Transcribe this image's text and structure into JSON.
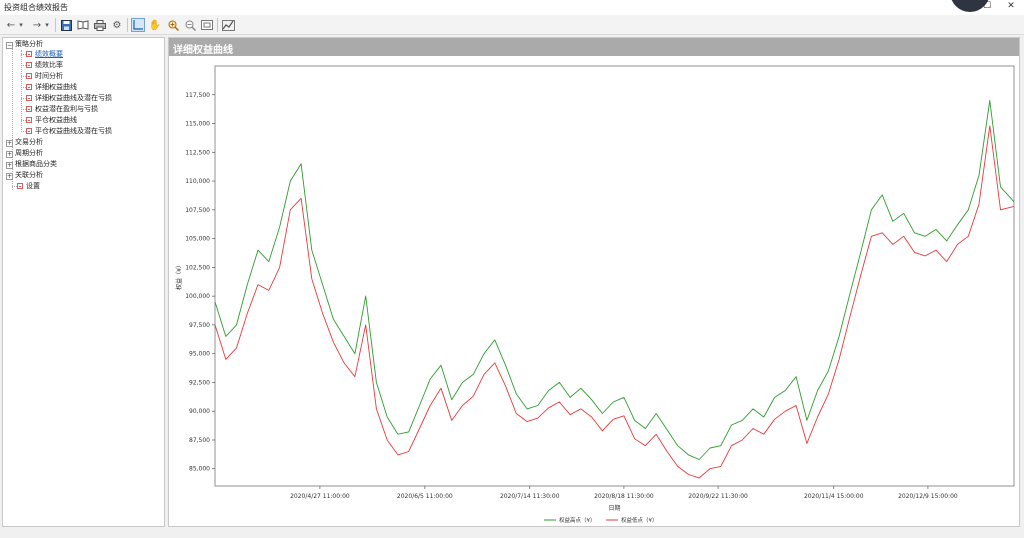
{
  "window": {
    "title": "投资组合绩效报告"
  },
  "toolbar": {
    "items": [
      "back-icon",
      "dropdown-icon",
      "forward-icon",
      "dropdown-icon",
      "save-icon",
      "book-icon",
      "print-icon",
      "gear-icon",
      "crosshair-icon",
      "hand-icon",
      "zoom-in-icon",
      "zoom-out-icon",
      "fit-icon",
      "export-icon"
    ]
  },
  "tree": {
    "strategy": "策略分析",
    "performance_summary": "绩效概要",
    "performance_ratio": "绩效比率",
    "time_analysis": "时间分析",
    "detail_equity_curve": "详细权益曲线",
    "detail_equity_dd": "详细权益曲线及潜在亏损",
    "equity_potential": "权益潜在盈利与亏损",
    "close_equity_curve": "平仓权益曲线",
    "close_equity_dd": "平仓权益曲线及潜在亏损",
    "trade": "交易分析",
    "period": "周期分析",
    "by_commodity": "根据商品分类",
    "correlation": "关联分析",
    "settings": "设置"
  },
  "panel": {
    "title": "详细权益曲线"
  },
  "chart_data": {
    "type": "line",
    "xlabel": "日期",
    "ylabel": "权益（¥）",
    "ylim": [
      83500,
      120000
    ],
    "y_ticks": [
      85000,
      87500,
      90000,
      92500,
      95000,
      97500,
      100000,
      102500,
      105000,
      107500,
      110000,
      112500,
      115000,
      117500
    ],
    "y_tick_labels": [
      "85,000",
      "87,500",
      "90,000",
      "92,500",
      "95,000",
      "97,500",
      "100,000",
      "102,500",
      "105,000",
      "107,500",
      "110,000",
      "112,500",
      "115,000",
      "117,500"
    ],
    "x_tick_labels": [
      "2020/4/27 11:00:00",
      "2020/6/5 11:00:00",
      "2020/7/14 11:30:00",
      "2020/8/18 11:30:00",
      "2020/9/22 11:30:00",
      "2020/11/4 15:00:00",
      "2020/12/9 15:00:00"
    ],
    "x_range": [
      "2020/3/19",
      "2021/1/10"
    ],
    "x_tick_dates": [
      "2020/4/27",
      "2020/6/5",
      "2020/7/14",
      "2020/8/18",
      "2020/9/22",
      "2020/11/4",
      "2020/12/9"
    ],
    "grid": true,
    "legend_position": "bottom-center",
    "series": [
      {
        "name": "权益高点（¥）",
        "color": "#2e9c2e",
        "x": [
          "2020/3/19",
          "2020/3/23",
          "2020/3/27",
          "2020/3/31",
          "2020/4/4",
          "2020/4/8",
          "2020/4/12",
          "2020/4/16",
          "2020/4/20",
          "2020/4/24",
          "2020/4/28",
          "2020/5/2",
          "2020/5/6",
          "2020/5/10",
          "2020/5/14",
          "2020/5/18",
          "2020/5/22",
          "2020/5/26",
          "2020/5/30",
          "2020/6/3",
          "2020/6/7",
          "2020/6/11",
          "2020/6/15",
          "2020/6/19",
          "2020/6/23",
          "2020/6/27",
          "2020/7/1",
          "2020/7/5",
          "2020/7/9",
          "2020/7/13",
          "2020/7/17",
          "2020/7/21",
          "2020/7/25",
          "2020/7/29",
          "2020/8/2",
          "2020/8/6",
          "2020/8/10",
          "2020/8/14",
          "2020/8/18",
          "2020/8/22",
          "2020/8/26",
          "2020/8/30",
          "2020/9/3",
          "2020/9/7",
          "2020/9/11",
          "2020/9/15",
          "2020/9/19",
          "2020/9/23",
          "2020/9/27",
          "2020/10/1",
          "2020/10/5",
          "2020/10/9",
          "2020/10/13",
          "2020/10/17",
          "2020/10/21",
          "2020/10/25",
          "2020/10/29",
          "2020/11/2",
          "2020/11/6",
          "2020/11/10",
          "2020/11/14",
          "2020/11/18",
          "2020/11/22",
          "2020/11/26",
          "2020/11/30",
          "2020/12/4",
          "2020/12/8",
          "2020/12/12",
          "2020/12/16",
          "2020/12/20",
          "2020/12/24",
          "2020/12/28",
          "2021/1/1",
          "2021/1/5",
          "2021/1/10"
        ],
        "values": [
          99500,
          96500,
          97500,
          101000,
          104000,
          103000,
          106000,
          110000,
          111500,
          104000,
          101000,
          98000,
          96500,
          95000,
          100000,
          92500,
          89500,
          88000,
          88200,
          90500,
          92800,
          94000,
          91000,
          92500,
          93200,
          95000,
          96200,
          94000,
          91500,
          90200,
          90500,
          91800,
          92500,
          91200,
          92000,
          91000,
          89800,
          90800,
          91200,
          89200,
          88500,
          89800,
          88400,
          87000,
          86200,
          85800,
          86800,
          87000,
          88800,
          89200,
          90200,
          89500,
          91200,
          91800,
          93000,
          89200,
          91800,
          93500,
          96500,
          100200,
          103800,
          107500,
          108800,
          106500,
          107200,
          105500,
          105200,
          105800,
          104800,
          106200,
          107500,
          110500,
          117000,
          109500,
          108200
        ]
      },
      {
        "name": "权益低点（¥）",
        "color": "#e83a3a",
        "x": [
          "2020/3/19",
          "2020/3/23",
          "2020/3/27",
          "2020/3/31",
          "2020/4/4",
          "2020/4/8",
          "2020/4/12",
          "2020/4/16",
          "2020/4/20",
          "2020/4/24",
          "2020/4/28",
          "2020/5/2",
          "2020/5/6",
          "2020/5/10",
          "2020/5/14",
          "2020/5/18",
          "2020/5/22",
          "2020/5/26",
          "2020/5/30",
          "2020/6/3",
          "2020/6/7",
          "2020/6/11",
          "2020/6/15",
          "2020/6/19",
          "2020/6/23",
          "2020/6/27",
          "2020/7/1",
          "2020/7/5",
          "2020/7/9",
          "2020/7/13",
          "2020/7/17",
          "2020/7/21",
          "2020/7/25",
          "2020/7/29",
          "2020/8/2",
          "2020/8/6",
          "2020/8/10",
          "2020/8/14",
          "2020/8/18",
          "2020/8/22",
          "2020/8/26",
          "2020/8/30",
          "2020/9/3",
          "2020/9/7",
          "2020/9/11",
          "2020/9/15",
          "2020/9/19",
          "2020/9/23",
          "2020/9/27",
          "2020/10/1",
          "2020/10/5",
          "2020/10/9",
          "2020/10/13",
          "2020/10/17",
          "2020/10/21",
          "2020/10/25",
          "2020/10/29",
          "2020/11/2",
          "2020/11/6",
          "2020/11/10",
          "2020/11/14",
          "2020/11/18",
          "2020/11/22",
          "2020/11/26",
          "2020/11/30",
          "2020/12/4",
          "2020/12/8",
          "2020/12/12",
          "2020/12/16",
          "2020/12/20",
          "2020/12/24",
          "2020/12/28",
          "2021/1/1",
          "2021/1/5",
          "2021/1/10"
        ],
        "values": [
          97500,
          94500,
          95500,
          98500,
          101000,
          100500,
          102500,
          107500,
          108500,
          101500,
          98500,
          96000,
          94200,
          93000,
          97500,
          90200,
          87500,
          86200,
          86500,
          88500,
          90500,
          92000,
          89200,
          90500,
          91300,
          93200,
          94200,
          92200,
          89800,
          89100,
          89400,
          90300,
          90800,
          89700,
          90200,
          89500,
          88300,
          89300,
          89600,
          87600,
          87000,
          88000,
          86500,
          85200,
          84500,
          84200,
          85000,
          85200,
          87000,
          87500,
          88500,
          88000,
          89300,
          90000,
          90500,
          87200,
          89500,
          91500,
          94500,
          98200,
          101800,
          105200,
          105500,
          104500,
          105200,
          103800,
          103500,
          104000,
          103000,
          104500,
          105200,
          108000,
          114800,
          107500,
          107800
        ]
      }
    ]
  }
}
